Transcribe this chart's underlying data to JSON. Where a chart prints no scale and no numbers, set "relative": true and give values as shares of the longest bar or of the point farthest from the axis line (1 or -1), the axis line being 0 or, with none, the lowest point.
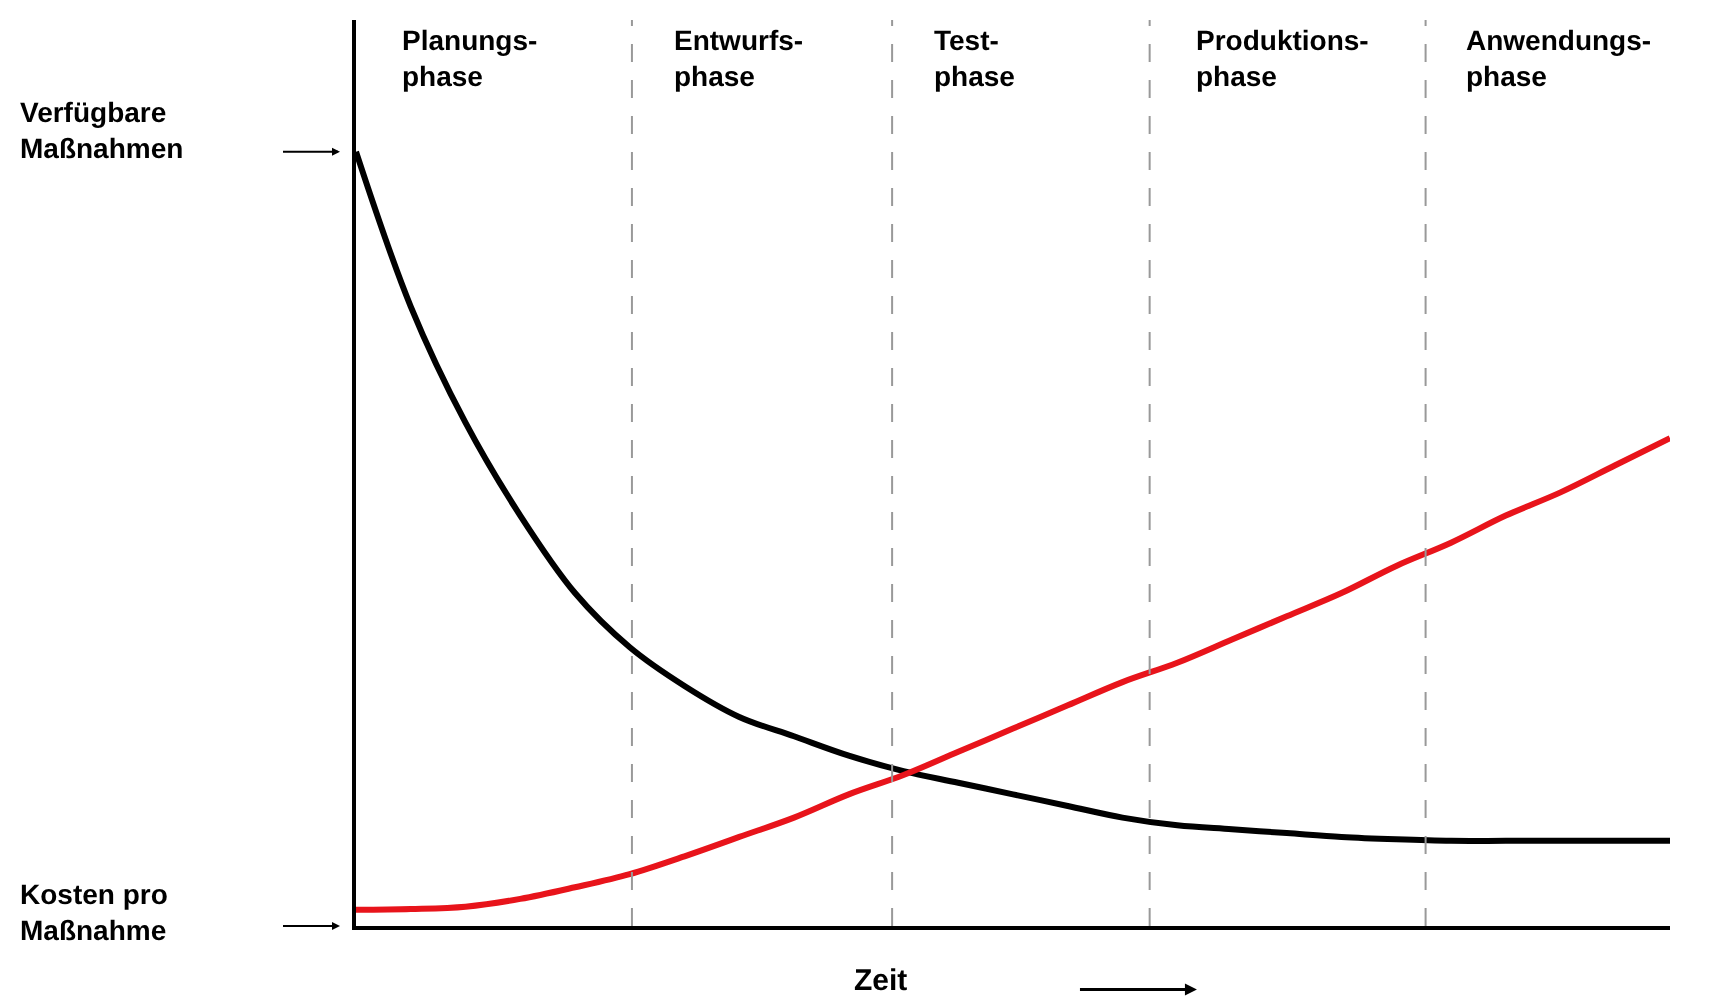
{
  "chart_data": {
    "type": "line",
    "relative": true,
    "xlabel": "Zeit",
    "categories": [
      null,
      null,
      null,
      null,
      null,
      null,
      null,
      null,
      null,
      null,
      null,
      null,
      null,
      null,
      null,
      null,
      null,
      null,
      null,
      null,
      null,
      null,
      null,
      null,
      null
    ],
    "series": [
      {
        "color": "#000000",
        "values": [
          1.0,
          0.8,
          0.65,
          0.53,
          0.43,
          0.36,
          0.31,
          0.27,
          0.245,
          0.22,
          0.2,
          0.185,
          0.17,
          0.155,
          0.14,
          0.13,
          0.125,
          0.12,
          0.115,
          0.112,
          0.11,
          0.11,
          0.11,
          0.11,
          0.11
        ]
      },
      {
        "color": "#e8141b",
        "values": [
          0.021,
          0.022,
          0.025,
          0.035,
          0.05,
          0.067,
          0.09,
          0.115,
          0.14,
          0.17,
          0.195,
          0.225,
          0.255,
          0.285,
          0.315,
          0.34,
          0.37,
          0.4,
          0.43,
          0.465,
          0.495,
          0.53,
          0.56,
          0.595,
          0.63
        ]
      }
    ],
    "annotations": [
      "Planungs-\nphase",
      "Entwurfs-\nphase",
      "Test-\nphase",
      "Produktions-\nphase",
      "Anwendungs-\nphase",
      "Verfügbare\nMaßnahmen",
      "Kosten pro\nMaßnahme"
    ],
    "marker": "none",
    "line_style": "solid"
  }
}
